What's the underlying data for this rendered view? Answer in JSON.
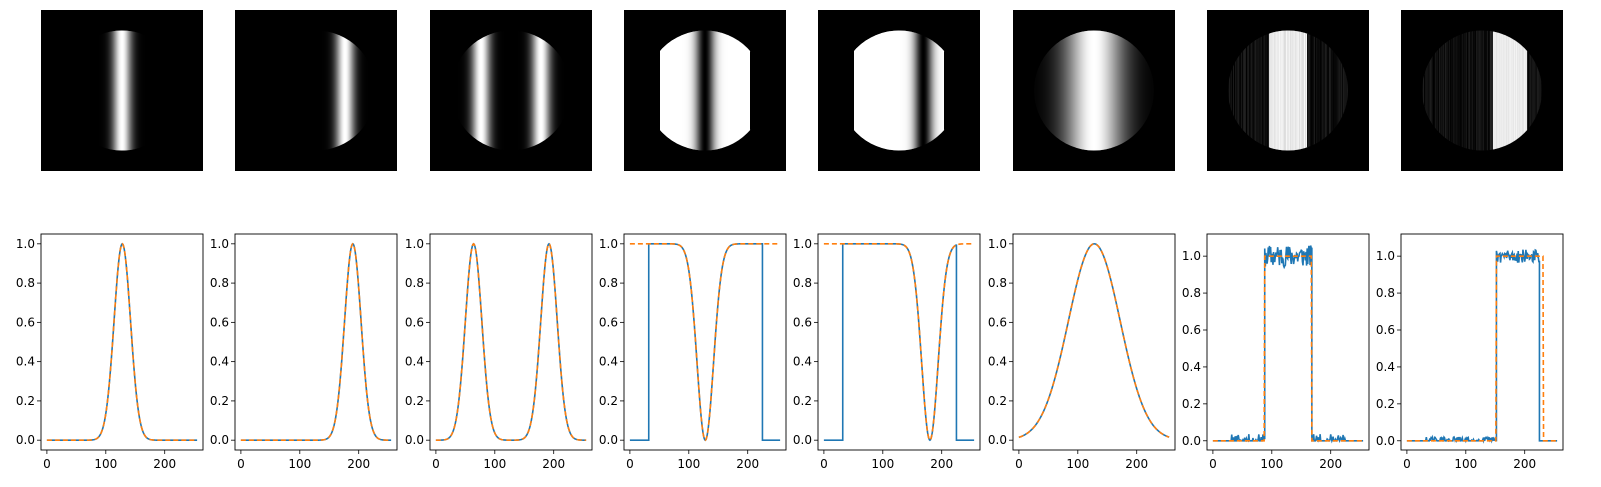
{
  "colors": {
    "profile": "#1f77b4",
    "target": "#ff7f0e",
    "frame": "#000000"
  },
  "chart_data": [
    {
      "type": "line",
      "profile": "gauss",
      "center": 128,
      "sigma": 14,
      "mask": "circle",
      "x_ticks": [
        0,
        100,
        200
      ],
      "y_ticks": [
        "0.0",
        "0.2",
        "0.4",
        "0.6",
        "0.8",
        "1.0"
      ],
      "xlim": [
        -10,
        265
      ],
      "ylim": [
        -0.05,
        1.05
      ],
      "series": [
        {
          "style": "solid"
        },
        {
          "style": "dashed"
        }
      ]
    },
    {
      "type": "line",
      "profile": "gauss",
      "center": 190,
      "sigma": 14,
      "mask": "circle",
      "x_ticks": [
        0,
        100,
        200
      ],
      "y_ticks": [
        "0.0",
        "0.2",
        "0.4",
        "0.6",
        "0.8",
        "1.0"
      ],
      "xlim": [
        -10,
        265
      ],
      "ylim": [
        -0.05,
        1.05
      ],
      "series": [
        {
          "style": "solid"
        },
        {
          "style": "dashed"
        }
      ]
    },
    {
      "type": "line",
      "profile": "double-gauss",
      "centers": [
        64,
        192
      ],
      "sigma": 14,
      "mask": "circle",
      "x_ticks": [
        0,
        100,
        200
      ],
      "y_ticks": [
        "0.0",
        "0.2",
        "0.4",
        "0.6",
        "0.8",
        "1.0"
      ],
      "xlim": [
        -10,
        265
      ],
      "ylim": [
        -0.05,
        1.05
      ],
      "series": [
        {
          "style": "solid"
        },
        {
          "style": "dashed"
        }
      ]
    },
    {
      "type": "line",
      "profile": "inverted-gauss",
      "center": 128,
      "sigma": 14,
      "aperture": [
        32,
        224
      ],
      "x_ticks": [
        0,
        100,
        200
      ],
      "y_ticks": [
        "0.0",
        "0.2",
        "0.4",
        "0.6",
        "0.8",
        "1.0"
      ],
      "xlim": [
        -10,
        265
      ],
      "ylim": [
        -0.05,
        1.05
      ],
      "series": [
        {
          "style": "solid"
        },
        {
          "style": "dashed"
        }
      ]
    },
    {
      "type": "line",
      "profile": "inverted-gauss",
      "center": 180,
      "sigma": 14,
      "aperture": [
        32,
        224
      ],
      "x_ticks": [
        0,
        100,
        200
      ],
      "y_ticks": [
        "0.0",
        "0.2",
        "0.4",
        "0.6",
        "0.8",
        "1.0"
      ],
      "xlim": [
        -10,
        265
      ],
      "ylim": [
        -0.05,
        1.05
      ],
      "series": [
        {
          "style": "solid"
        },
        {
          "style": "dashed"
        }
      ]
    },
    {
      "type": "line",
      "profile": "gauss",
      "center": 128,
      "sigma": 44,
      "mask": "circle",
      "x_ticks": [
        0,
        100,
        200
      ],
      "y_ticks": [
        "0.0",
        "0.2",
        "0.4",
        "0.6",
        "0.8",
        "1.0"
      ],
      "xlim": [
        -10,
        265
      ],
      "ylim": [
        -0.05,
        1.05
      ],
      "series": [
        {
          "style": "solid"
        },
        {
          "style": "dashed"
        }
      ]
    },
    {
      "type": "line",
      "profile": "box-noisy",
      "edges": [
        88,
        168
      ],
      "aperture": [
        32,
        224
      ],
      "noise": 0.05,
      "seed": 11,
      "x_ticks": [
        0,
        100,
        200
      ],
      "y_ticks": [
        "0.0",
        "0.2",
        "0.4",
        "0.6",
        "0.8",
        "1.0"
      ],
      "xlim": [
        -10,
        265
      ],
      "ylim": [
        -0.05,
        1.12
      ],
      "series": [
        {
          "style": "solid"
        },
        {
          "style": "dashed"
        }
      ]
    },
    {
      "type": "line",
      "profile": "box-noisy",
      "edges": [
        152,
        232
      ],
      "aperture": [
        32,
        224
      ],
      "noise": 0.03,
      "seed": 29,
      "x_ticks": [
        0,
        100,
        200
      ],
      "y_ticks": [
        "0.0",
        "0.2",
        "0.4",
        "0.6",
        "0.8",
        "1.0"
      ],
      "xlim": [
        -10,
        265
      ],
      "ylim": [
        -0.05,
        1.12
      ],
      "series": [
        {
          "style": "solid"
        },
        {
          "style": "dashed"
        }
      ]
    }
  ]
}
